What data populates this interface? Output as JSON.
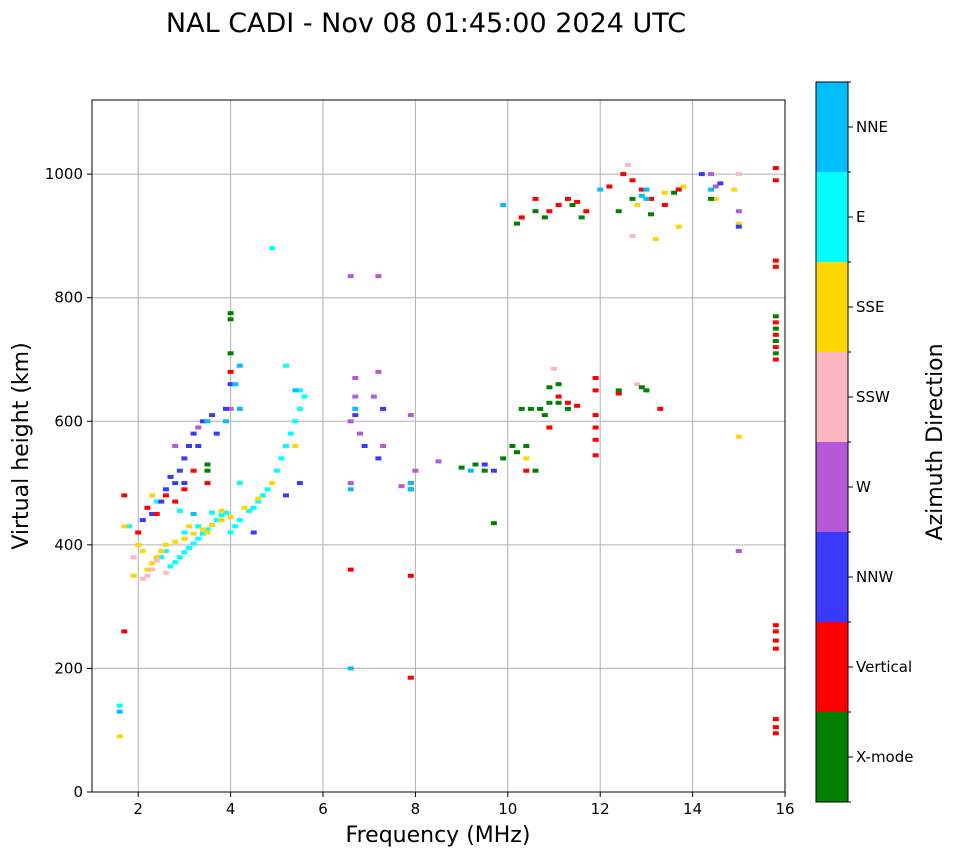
{
  "chart_data": {
    "type": "scatter",
    "title": "NAL CADI - Nov 08 01:45:00 2024 UTC",
    "xlabel": "Frequency (MHz)",
    "ylabel": "Virtual height (km)",
    "xlim": [
      1,
      16
    ],
    "ylim": [
      0,
      1120
    ],
    "xticks": [
      2,
      4,
      6,
      8,
      10,
      12,
      14,
      16
    ],
    "yticks": [
      0,
      200,
      400,
      600,
      800,
      1000
    ],
    "grid": true,
    "colorbar": {
      "label": "Azimuth Direction",
      "categories": [
        {
          "name": "X-mode",
          "color": "#008000"
        },
        {
          "name": "Vertical",
          "color": "#ff0000"
        },
        {
          "name": "NNW",
          "color": "#3a3aff"
        },
        {
          "name": "W",
          "color": "#b45ad6"
        },
        {
          "name": "SSW",
          "color": "#ffb6c1"
        },
        {
          "name": "SSE",
          "color": "#ffd700"
        },
        {
          "name": "E",
          "color": "#00ffff"
        },
        {
          "name": "NNE",
          "color": "#00bfff"
        }
      ]
    },
    "series": [
      {
        "name": "E",
        "points": [
          [
            2.7,
            365
          ],
          [
            2.8,
            372
          ],
          [
            2.9,
            380
          ],
          [
            3.0,
            388
          ],
          [
            3.1,
            395
          ],
          [
            3.2,
            402
          ],
          [
            3.3,
            410
          ],
          [
            3.4,
            418
          ],
          [
            3.5,
            425
          ],
          [
            3.6,
            432
          ],
          [
            3.7,
            440
          ],
          [
            3.8,
            448
          ],
          [
            3.9,
            452
          ],
          [
            4.0,
            420
          ],
          [
            4.1,
            430
          ],
          [
            4.2,
            440
          ],
          [
            4.4,
            455
          ],
          [
            4.5,
            460
          ],
          [
            4.6,
            470
          ],
          [
            4.7,
            480
          ],
          [
            4.8,
            490
          ],
          [
            5.0,
            520
          ],
          [
            5.1,
            540
          ],
          [
            5.2,
            560
          ],
          [
            5.3,
            580
          ],
          [
            5.4,
            600
          ],
          [
            5.5,
            620
          ],
          [
            5.6,
            640
          ],
          [
            2.5,
            380
          ],
          [
            2.6,
            390
          ],
          [
            3.0,
            420
          ],
          [
            3.3,
            430
          ],
          [
            1.8,
            430
          ],
          [
            1.6,
            140
          ],
          [
            2.4,
            470
          ],
          [
            4.9,
            880
          ],
          [
            2.9,
            455
          ],
          [
            3.6,
            452
          ],
          [
            5.5,
            650
          ],
          [
            4.2,
            500
          ],
          [
            5.2,
            690
          ]
        ]
      },
      {
        "name": "SSE",
        "points": [
          [
            2.2,
            360
          ],
          [
            2.3,
            370
          ],
          [
            2.4,
            380
          ],
          [
            2.5,
            390
          ],
          [
            2.6,
            400
          ],
          [
            2.8,
            405
          ],
          [
            3.0,
            410
          ],
          [
            3.2,
            418
          ],
          [
            3.4,
            425
          ],
          [
            3.6,
            432
          ],
          [
            3.8,
            440
          ],
          [
            4.0,
            445
          ],
          [
            4.3,
            460
          ],
          [
            4.6,
            475
          ],
          [
            4.9,
            500
          ],
          [
            2.0,
            400
          ],
          [
            2.1,
            390
          ],
          [
            1.9,
            350
          ],
          [
            1.7,
            430
          ],
          [
            2.3,
            480
          ],
          [
            3.5,
            420
          ],
          [
            1.6,
            90
          ],
          [
            5.4,
            560
          ],
          [
            12.8,
            950
          ],
          [
            13.1,
            960
          ],
          [
            13.4,
            970
          ],
          [
            13.8,
            980
          ],
          [
            13.2,
            895
          ],
          [
            13.7,
            915
          ],
          [
            14.9,
            975
          ],
          [
            15.0,
            920
          ],
          [
            14.5,
            960
          ],
          [
            15.0,
            575
          ],
          [
            10.4,
            540
          ],
          [
            3.1,
            430
          ],
          [
            3.8,
            455
          ]
        ]
      },
      {
        "name": "SSW",
        "points": [
          [
            2.1,
            345
          ],
          [
            2.2,
            350
          ],
          [
            2.3,
            360
          ],
          [
            2.4,
            375
          ],
          [
            2.6,
            355
          ],
          [
            2.0,
            420
          ],
          [
            1.9,
            380
          ],
          [
            12.7,
            900
          ],
          [
            13.0,
            975
          ],
          [
            12.6,
            1015
          ],
          [
            11.0,
            685
          ],
          [
            12.8,
            660
          ],
          [
            15.0,
            1000
          ]
        ]
      },
      {
        "name": "W",
        "points": [
          [
            6.6,
            835
          ],
          [
            7.2,
            835
          ],
          [
            6.7,
            670
          ],
          [
            6.7,
            640
          ],
          [
            6.6,
            600
          ],
          [
            6.8,
            580
          ],
          [
            7.1,
            640
          ],
          [
            7.2,
            680
          ],
          [
            7.9,
            610
          ],
          [
            8.0,
            520
          ],
          [
            6.6,
            500
          ],
          [
            7.3,
            560
          ],
          [
            14.4,
            1000
          ],
          [
            14.5,
            980
          ],
          [
            15.0,
            940
          ],
          [
            15.0,
            390
          ],
          [
            4.0,
            620
          ],
          [
            3.3,
            590
          ],
          [
            2.8,
            560
          ],
          [
            7.7,
            495
          ],
          [
            8.5,
            535
          ]
        ]
      },
      {
        "name": "NNW",
        "points": [
          [
            2.1,
            440
          ],
          [
            2.3,
            450
          ],
          [
            2.5,
            470
          ],
          [
            2.6,
            490
          ],
          [
            2.8,
            500
          ],
          [
            2.9,
            520
          ],
          [
            3.0,
            540
          ],
          [
            3.1,
            560
          ],
          [
            3.2,
            580
          ],
          [
            3.4,
            600
          ],
          [
            3.6,
            610
          ],
          [
            3.7,
            580
          ],
          [
            3.9,
            620
          ],
          [
            4.0,
            660
          ],
          [
            2.7,
            510
          ],
          [
            3.0,
            500
          ],
          [
            3.3,
            560
          ],
          [
            5.2,
            480
          ],
          [
            5.5,
            500
          ],
          [
            4.5,
            420
          ],
          [
            14.6,
            985
          ],
          [
            14.2,
            1000
          ],
          [
            15.0,
            915
          ],
          [
            6.9,
            560
          ],
          [
            7.2,
            540
          ],
          [
            7.3,
            620
          ],
          [
            6.7,
            610
          ],
          [
            7.9,
            490
          ],
          [
            9.5,
            530
          ],
          [
            9.7,
            520
          ]
        ]
      },
      {
        "name": "Vertical",
        "points": [
          [
            1.7,
            480
          ],
          [
            2.0,
            420
          ],
          [
            2.2,
            460
          ],
          [
            2.4,
            450
          ],
          [
            2.6,
            480
          ],
          [
            2.8,
            470
          ],
          [
            3.0,
            490
          ],
          [
            3.2,
            520
          ],
          [
            1.7,
            260
          ],
          [
            6.6,
            360
          ],
          [
            7.9,
            350
          ],
          [
            7.9,
            185
          ],
          [
            10.3,
            930
          ],
          [
            10.6,
            960
          ],
          [
            10.9,
            940
          ],
          [
            11.1,
            950
          ],
          [
            11.3,
            960
          ],
          [
            11.5,
            955
          ],
          [
            11.7,
            940
          ],
          [
            12.2,
            980
          ],
          [
            12.5,
            1000
          ],
          [
            12.7,
            990
          ],
          [
            12.9,
            975
          ],
          [
            13.1,
            960
          ],
          [
            13.4,
            950
          ],
          [
            13.7,
            975
          ],
          [
            15.8,
            1010
          ],
          [
            15.8,
            990
          ],
          [
            15.8,
            860
          ],
          [
            15.8,
            850
          ],
          [
            15.8,
            760
          ],
          [
            15.8,
            740
          ],
          [
            15.8,
            720
          ],
          [
            15.8,
            700
          ],
          [
            15.8,
            270
          ],
          [
            15.8,
            260
          ],
          [
            15.8,
            245
          ],
          [
            15.8,
            232
          ],
          [
            15.8,
            118
          ],
          [
            15.8,
            105
          ],
          [
            15.8,
            95
          ],
          [
            11.1,
            640
          ],
          [
            11.3,
            630
          ],
          [
            11.5,
            625
          ],
          [
            11.9,
            670
          ],
          [
            11.9,
            650
          ],
          [
            11.9,
            610
          ],
          [
            11.9,
            590
          ],
          [
            11.9,
            570
          ],
          [
            11.9,
            545
          ],
          [
            12.4,
            645
          ],
          [
            13.3,
            620
          ],
          [
            10.9,
            590
          ],
          [
            10.4,
            520
          ],
          [
            7.9,
            500
          ],
          [
            3.5,
            500
          ],
          [
            4.0,
            680
          ]
        ]
      },
      {
        "name": "X-mode",
        "points": [
          [
            4.0,
            775
          ],
          [
            4.0,
            765
          ],
          [
            4.0,
            710
          ],
          [
            3.5,
            530
          ],
          [
            3.5,
            520
          ],
          [
            9.7,
            435
          ],
          [
            9.0,
            525
          ],
          [
            9.3,
            530
          ],
          [
            9.5,
            520
          ],
          [
            9.9,
            540
          ],
          [
            10.1,
            560
          ],
          [
            10.4,
            560
          ],
          [
            10.6,
            520
          ],
          [
            10.7,
            620
          ],
          [
            10.9,
            630
          ],
          [
            11.1,
            630
          ],
          [
            11.3,
            620
          ],
          [
            12.4,
            650
          ],
          [
            12.9,
            655
          ],
          [
            13.0,
            650
          ],
          [
            10.3,
            620
          ],
          [
            10.5,
            620
          ],
          [
            10.8,
            610
          ],
          [
            10.2,
            920
          ],
          [
            10.6,
            940
          ],
          [
            10.8,
            930
          ],
          [
            11.4,
            950
          ],
          [
            11.6,
            930
          ],
          [
            12.4,
            940
          ],
          [
            12.7,
            960
          ],
          [
            13.1,
            935
          ],
          [
            13.6,
            970
          ],
          [
            14.4,
            960
          ],
          [
            15.8,
            770
          ],
          [
            15.8,
            750
          ],
          [
            15.8,
            730
          ],
          [
            15.8,
            710
          ],
          [
            11.1,
            660
          ],
          [
            10.9,
            655
          ],
          [
            10.2,
            550
          ]
        ]
      },
      {
        "name": "NNE",
        "points": [
          [
            3.5,
            600
          ],
          [
            3.9,
            600
          ],
          [
            4.2,
            620
          ],
          [
            4.1,
            660
          ],
          [
            4.2,
            690
          ],
          [
            5.4,
            650
          ],
          [
            6.7,
            620
          ],
          [
            7.9,
            500
          ],
          [
            7.9,
            490
          ],
          [
            6.6,
            200
          ],
          [
            9.9,
            950
          ],
          [
            1.6,
            130
          ],
          [
            12.9,
            965
          ],
          [
            13.0,
            975
          ],
          [
            14.4,
            975
          ],
          [
            6.6,
            490
          ],
          [
            3.2,
            450
          ],
          [
            9.2,
            520
          ],
          [
            13.0,
            960
          ],
          [
            12.0,
            975
          ]
        ]
      }
    ]
  }
}
